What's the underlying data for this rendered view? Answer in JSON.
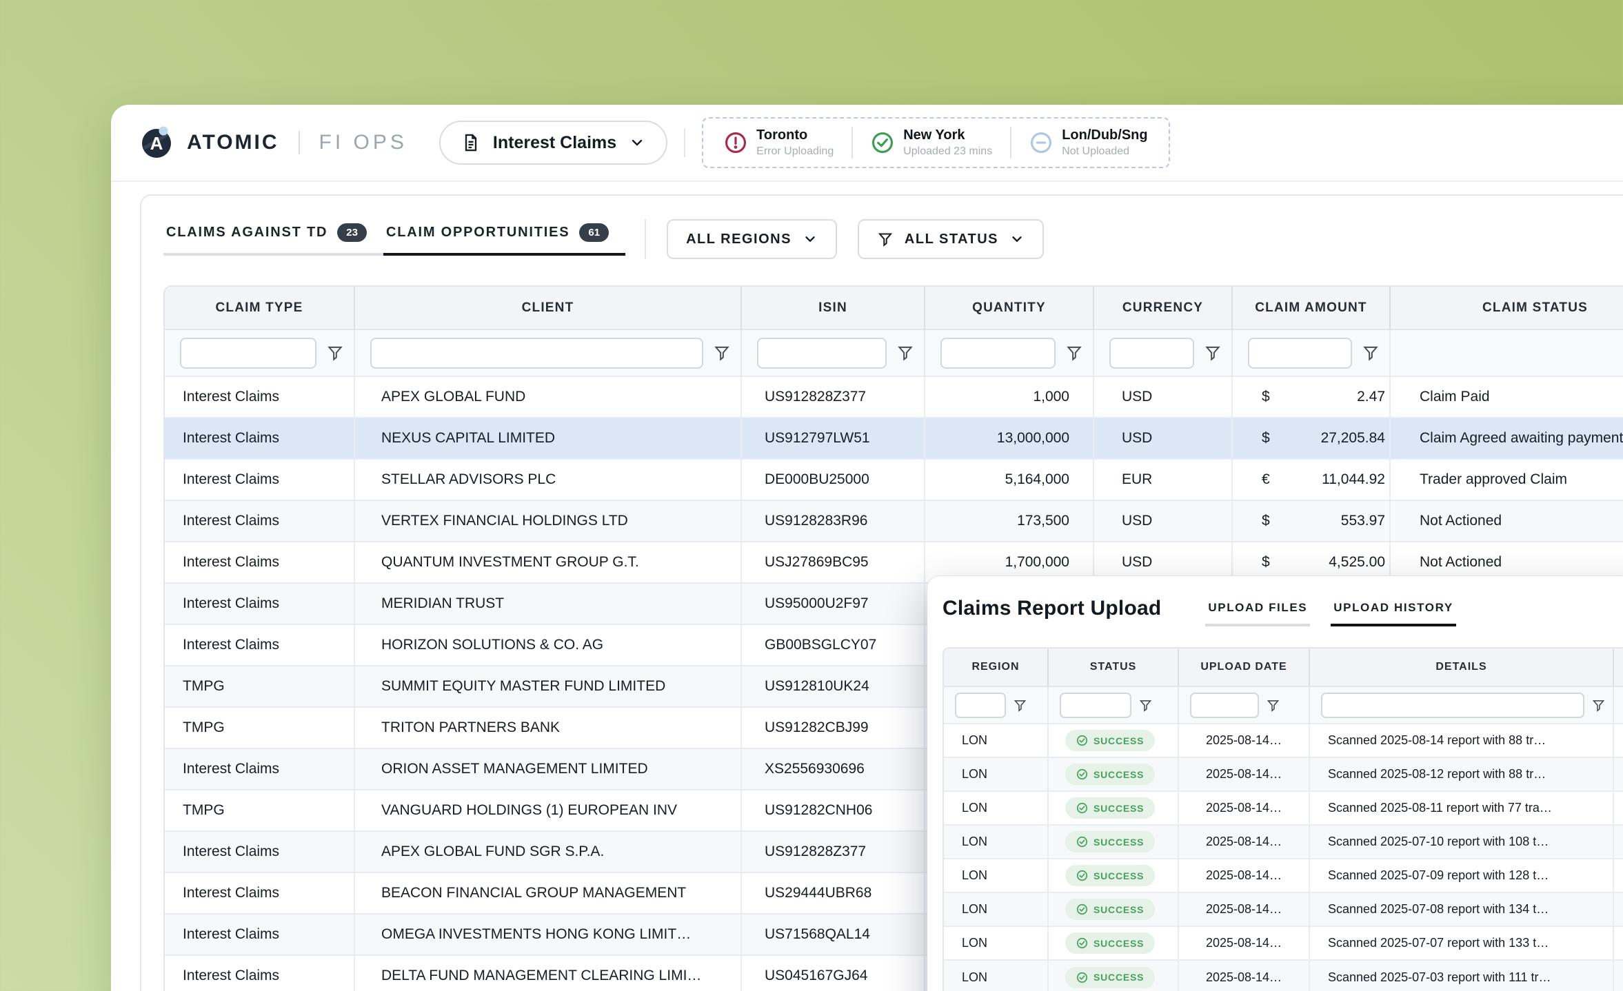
{
  "brand": {
    "name": "ATOMIC",
    "suffix": "FI OPS",
    "logo_letter": "A"
  },
  "nav": {
    "selected_view": "Interest Claims"
  },
  "region_status": [
    {
      "name": "Toronto",
      "status": "Error Uploading",
      "state": "error"
    },
    {
      "name": "New York",
      "status": "Uploaded 23 mins",
      "state": "success"
    },
    {
      "name": "Lon/Dub/Sng",
      "status": "Not Uploaded",
      "state": "pending"
    }
  ],
  "tabs": [
    {
      "label": "CLAIMS AGAINST TD",
      "count": "23",
      "active": false
    },
    {
      "label": "CLAIM OPPORTUNITIES",
      "count": "61",
      "active": true
    }
  ],
  "filter_buttons": {
    "regions": "ALL REGIONS",
    "status": "ALL STATUS"
  },
  "claims_table": {
    "columns": [
      "CLAIM TYPE",
      "CLIENT",
      "ISIN",
      "QUANTITY",
      "CURRENCY",
      "CLAIM AMOUNT",
      "CLAIM STATUS"
    ],
    "selected_row_index": 1,
    "partial_next_row": true,
    "rows": [
      {
        "type": "Interest Claims",
        "client": "APEX GLOBAL FUND",
        "isin": "US912828Z377",
        "quantity": "1,000",
        "currency": "USD",
        "symbol": "$",
        "amount": "2.47",
        "status": "Claim Paid"
      },
      {
        "type": "Interest Claims",
        "client": "NEXUS CAPITAL LIMITED",
        "isin": "US912797LW51",
        "quantity": "13,000,000",
        "currency": "USD",
        "symbol": "$",
        "amount": "27,205.84",
        "status": "Claim Agreed awaiting payment"
      },
      {
        "type": "Interest Claims",
        "client": "STELLAR ADVISORS PLC",
        "isin": "DE000BU25000",
        "quantity": "5,164,000",
        "currency": "EUR",
        "symbol": "€",
        "amount": "11,044.92",
        "status": "Trader approved Claim"
      },
      {
        "type": "Interest Claims",
        "client": "VERTEX FINANCIAL HOLDINGS LTD",
        "isin": "US9128283R96",
        "quantity": "173,500",
        "currency": "USD",
        "symbol": "$",
        "amount": "553.97",
        "status": "Not Actioned"
      },
      {
        "type": "Interest Claims",
        "client": "QUANTUM INVESTMENT GROUP G.T.",
        "isin": "USJ27869BC95",
        "quantity": "1,700,000",
        "currency": "USD",
        "symbol": "$",
        "amount": "4,525.00",
        "status": "Not Actioned"
      },
      {
        "type": "Interest Claims",
        "client": "MERIDIAN TRUST",
        "isin": "US95000U2F97",
        "quantity": "",
        "currency": "",
        "symbol": "",
        "amount": "",
        "status": ""
      },
      {
        "type": "Interest Claims",
        "client": "HORIZON SOLUTIONS & CO. AG",
        "isin": "GB00BSGLCY07",
        "quantity": "",
        "currency": "",
        "symbol": "",
        "amount": "",
        "status": ""
      },
      {
        "type": "TMPG",
        "client": "SUMMIT EQUITY MASTER FUND LIMITED",
        "isin": "US912810UK24",
        "quantity": "",
        "currency": "",
        "symbol": "",
        "amount": "",
        "status": ""
      },
      {
        "type": "TMPG",
        "client": "TRITON PARTNERS BANK",
        "isin": "US91282CBJ99",
        "quantity": "",
        "currency": "",
        "symbol": "",
        "amount": "",
        "status": ""
      },
      {
        "type": "Interest Claims",
        "client": "ORION ASSET MANAGEMENT LIMITED",
        "isin": "XS2556930696",
        "quantity": "",
        "currency": "",
        "symbol": "",
        "amount": "",
        "status": ""
      },
      {
        "type": "TMPG",
        "client": "VANGUARD HOLDINGS (1) EUROPEAN INV",
        "isin": "US91282CNH06",
        "quantity": "",
        "currency": "",
        "symbol": "",
        "amount": "",
        "status": ""
      },
      {
        "type": "Interest Claims",
        "client": "APEX GLOBAL FUND SGR S.P.A.",
        "isin": "US912828Z377",
        "quantity": "",
        "currency": "",
        "symbol": "",
        "amount": "",
        "status": ""
      },
      {
        "type": "Interest Claims",
        "client": "BEACON FINANCIAL GROUP MANAGEMENT",
        "isin": "US29444UBR68",
        "quantity": "",
        "currency": "",
        "symbol": "",
        "amount": "",
        "status": ""
      },
      {
        "type": "Interest Claims",
        "client": "OMEGA INVESTMENTS HONG KONG LIMIT…",
        "isin": "US71568QAL14",
        "quantity": "",
        "currency": "",
        "symbol": "",
        "amount": "",
        "status": ""
      },
      {
        "type": "Interest Claims",
        "client": "DELTA FUND MANAGEMENT CLEARING LIMI…",
        "isin": "US045167GJ64",
        "quantity": "",
        "currency": "",
        "symbol": "",
        "amount": "",
        "status": ""
      }
    ]
  },
  "upload_panel": {
    "title": "Claims Report Upload",
    "tabs": [
      {
        "label": "UPLOAD FILES",
        "active": false
      },
      {
        "label": "UPLOAD HISTORY",
        "active": true
      }
    ],
    "columns": [
      "REGION",
      "STATUS",
      "UPLOAD DATE",
      "DETAILS"
    ],
    "rows": [
      {
        "region": "LON",
        "status": "SUCCESS",
        "upload_date": "2025-08-14…",
        "details": "Scanned 2025-08-14 report with 88 tr…"
      },
      {
        "region": "LON",
        "status": "SUCCESS",
        "upload_date": "2025-08-14…",
        "details": "Scanned 2025-08-12 report with 88 tr…"
      },
      {
        "region": "LON",
        "status": "SUCCESS",
        "upload_date": "2025-08-14…",
        "details": "Scanned 2025-08-11 report with 77 tra…"
      },
      {
        "region": "LON",
        "status": "SUCCESS",
        "upload_date": "2025-08-14…",
        "details": "Scanned 2025-07-10 report with 108 t…"
      },
      {
        "region": "LON",
        "status": "SUCCESS",
        "upload_date": "2025-08-14…",
        "details": "Scanned 2025-07-09 report with 128 t…"
      },
      {
        "region": "LON",
        "status": "SUCCESS",
        "upload_date": "2025-08-14…",
        "details": "Scanned 2025-07-08 report with 134 t…"
      },
      {
        "region": "LON",
        "status": "SUCCESS",
        "upload_date": "2025-08-14…",
        "details": "Scanned 2025-07-07 report with 133 t…"
      },
      {
        "region": "LON",
        "status": "SUCCESS",
        "upload_date": "2025-08-14…",
        "details": "Scanned 2025-07-03 report with 111 tr…"
      }
    ]
  },
  "colors": {
    "background_top": "#abc26e",
    "background_bottom": "#cadda7",
    "error": "#a62a4c",
    "success": "#3c9d50",
    "pending": "#abc6e6",
    "selected_row": "#dbe7f5",
    "badge": "#363e4a",
    "success_pill_bg": "#e6f2e8",
    "success_pill_text": "#47a15b"
  }
}
